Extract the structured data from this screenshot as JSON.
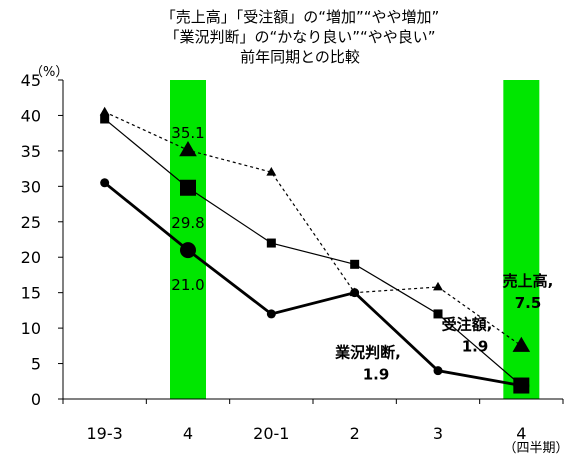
{
  "chart_data": {
    "type": "line",
    "title": [
      "「売上高」「受注額」の“増加”“やや増加”",
      "「業況判断」の“かなり良い”“やや良い”",
      "前年同期との比較"
    ],
    "y_unit": "（%）",
    "x_unit": "（四半期）",
    "categories": [
      "19-3",
      "4",
      "20-1",
      "2",
      "3",
      "4"
    ],
    "ylim": [
      0,
      45
    ],
    "yticks": [
      "0",
      "5",
      "10",
      "15",
      "20",
      "25",
      "30",
      "35",
      "40",
      "45"
    ],
    "highlight_categories": [
      "4",
      "4"
    ],
    "highlight_color": "#00e600",
    "series": [
      {
        "key": "sales",
        "values": [
          40.5,
          35.1,
          32.0,
          15.0,
          15.8,
          7.5
        ],
        "style": "dashed",
        "marker": "triangle"
      },
      {
        "key": "orders",
        "values": [
          39.5,
          29.8,
          22.0,
          19.0,
          12.0,
          1.9
        ],
        "style": "solid-thin",
        "marker": "square"
      },
      {
        "key": "business",
        "values": [
          30.5,
          21.0,
          12.0,
          15.0,
          4.0,
          1.9
        ],
        "style": "solid-thick",
        "marker": "circle"
      }
    ],
    "data_labels": [
      {
        "series": 0,
        "index": 1,
        "text": "35.1"
      },
      {
        "series": 1,
        "index": 1,
        "text": "29.8"
      },
      {
        "series": 2,
        "index": 1,
        "text": "21.0"
      }
    ],
    "callouts": [
      {
        "series": 0,
        "lines": [
          "売上高,",
          "7.5"
        ]
      },
      {
        "series": 1,
        "lines": [
          "受注額,",
          "1.9"
        ]
      },
      {
        "series": 2,
        "lines": [
          "業況判断,",
          "1.9"
        ]
      }
    ]
  }
}
